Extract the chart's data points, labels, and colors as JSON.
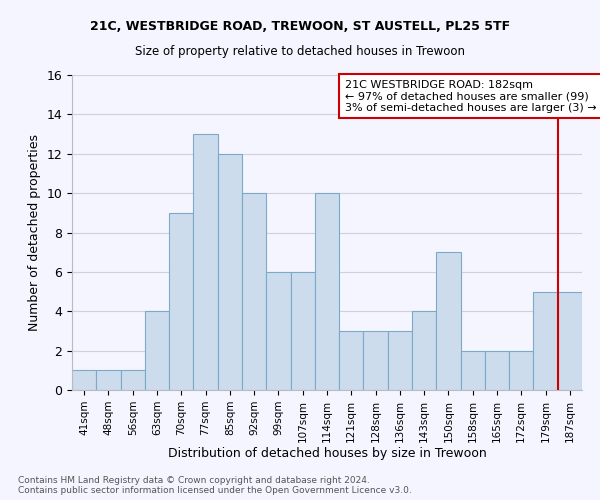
{
  "title": "21C, WESTBRIDGE ROAD, TREWOON, ST AUSTELL, PL25 5TF",
  "subtitle": "Size of property relative to detached houses in Trewoon",
  "xlabel": "Distribution of detached houses by size in Trewoon",
  "ylabel": "Number of detached properties",
  "footer1": "Contains HM Land Registry data © Crown copyright and database right 2024.",
  "footer2": "Contains public sector information licensed under the Open Government Licence v3.0.",
  "categories": [
    "41sqm",
    "48sqm",
    "56sqm",
    "63sqm",
    "70sqm",
    "77sqm",
    "85sqm",
    "92sqm",
    "99sqm",
    "107sqm",
    "114sqm",
    "121sqm",
    "128sqm",
    "136sqm",
    "143sqm",
    "150sqm",
    "158sqm",
    "165sqm",
    "172sqm",
    "179sqm",
    "187sqm"
  ],
  "values": [
    1,
    1,
    1,
    4,
    9,
    13,
    12,
    10,
    6,
    6,
    10,
    3,
    3,
    3,
    4,
    7,
    2,
    2,
    2,
    5,
    5
  ],
  "bar_color": "#ccdcec",
  "bar_edge_color": "#7aaac8",
  "ylim": [
    0,
    16
  ],
  "yticks": [
    0,
    2,
    4,
    6,
    8,
    10,
    12,
    14,
    16
  ],
  "annotation_line1": "21C WESTBRIDGE ROAD: 182sqm",
  "annotation_line2": "← 97% of detached houses are smaller (99)",
  "annotation_line3": "3% of semi-detached houses are larger (3) →",
  "annotation_box_color": "#cc0000",
  "property_line_x": 19.5,
  "property_line_color": "#cc0000",
  "background_color": "#f5f5ff",
  "grid_color": "#d0d0d8"
}
